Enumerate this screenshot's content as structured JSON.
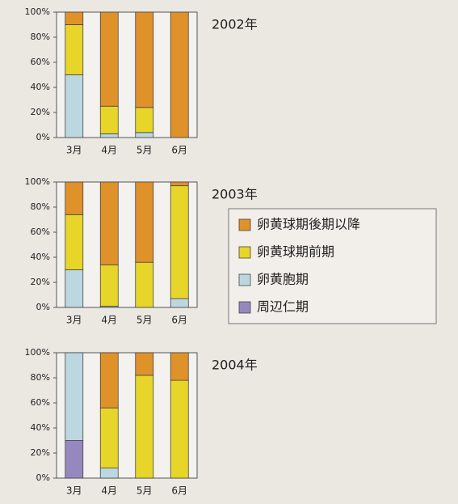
{
  "chart_data": [
    {
      "type": "stacked_bar",
      "title": "2002年",
      "categories": [
        "3月",
        "4月",
        "5月",
        "6月"
      ],
      "series": [
        {
          "name": "周辺仁期",
          "color": "#9688bf",
          "values": [
            0,
            0,
            0,
            0
          ]
        },
        {
          "name": "卵黄胞期",
          "color": "#bcd7e0",
          "values": [
            50,
            3,
            4,
            0
          ]
        },
        {
          "name": "卵黄球期前期",
          "color": "#e8d52a",
          "values": [
            40,
            22,
            20,
            0
          ]
        },
        {
          "name": "卵黄球期後期以降",
          "color": "#e0922a",
          "values": [
            10,
            75,
            76,
            100
          ]
        }
      ],
      "ylim": [
        0,
        100
      ],
      "yticks": [
        {
          "value": 0,
          "label": "0%"
        },
        {
          "value": 20,
          "label": "20%"
        },
        {
          "value": 40,
          "label": "40%"
        },
        {
          "value": 60,
          "label": "60%"
        },
        {
          "value": 80,
          "label": "80%"
        },
        {
          "value": 100,
          "label": "100%"
        }
      ]
    },
    {
      "type": "stacked_bar",
      "title": "2003年",
      "categories": [
        "3月",
        "4月",
        "5月",
        "6月"
      ],
      "series": [
        {
          "name": "周辺仁期",
          "color": "#9688bf",
          "values": [
            0,
            0,
            0,
            0
          ]
        },
        {
          "name": "卵黄胞期",
          "color": "#bcd7e0",
          "values": [
            30,
            1,
            0,
            7
          ]
        },
        {
          "name": "卵黄球期前期",
          "color": "#e8d52a",
          "values": [
            44,
            33,
            36,
            90
          ]
        },
        {
          "name": "卵黄球期後期以降",
          "color": "#e0922a",
          "values": [
            26,
            66,
            64,
            3
          ]
        }
      ],
      "ylim": [
        0,
        100
      ],
      "yticks": [
        {
          "value": 0,
          "label": "0%"
        },
        {
          "value": 20,
          "label": "20%"
        },
        {
          "value": 40,
          "label": "40%"
        },
        {
          "value": 60,
          "label": "60%"
        },
        {
          "value": 80,
          "label": "80%"
        },
        {
          "value": 100,
          "label": "100%"
        }
      ]
    },
    {
      "type": "stacked_bar",
      "title": "2004年",
      "categories": [
        "3月",
        "4月",
        "5月",
        "6月"
      ],
      "series": [
        {
          "name": "周辺仁期",
          "color": "#9688bf",
          "values": [
            30,
            0,
            0,
            0
          ]
        },
        {
          "name": "卵黄胞期",
          "color": "#bcd7e0",
          "values": [
            70,
            8,
            0,
            0
          ]
        },
        {
          "name": "卵黄球期前期",
          "color": "#e8d52a",
          "values": [
            0,
            48,
            82,
            78
          ]
        },
        {
          "name": "卵黄球期後期以降",
          "color": "#e0922a",
          "values": [
            0,
            44,
            18,
            22
          ]
        }
      ],
      "ylim": [
        0,
        100
      ],
      "yticks": [
        {
          "value": 0,
          "label": "0%"
        },
        {
          "value": 20,
          "label": "20%"
        },
        {
          "value": 40,
          "label": "40%"
        },
        {
          "value": 60,
          "label": "60%"
        },
        {
          "value": 80,
          "label": "80%"
        },
        {
          "value": 100,
          "label": "100%"
        }
      ]
    }
  ]
}
